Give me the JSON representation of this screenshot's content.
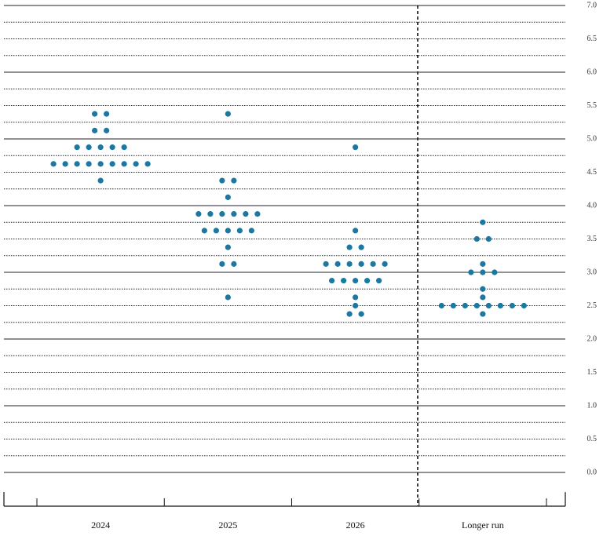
{
  "chart_data": {
    "type": "dot",
    "categories": [
      "2024",
      "2025",
      "2026",
      "Longer run"
    ],
    "values": [
      [
        5.375,
        5.375,
        5.125,
        5.125,
        4.875,
        4.875,
        4.875,
        4.875,
        4.875,
        4.625,
        4.625,
        4.625,
        4.625,
        4.625,
        4.625,
        4.625,
        4.625,
        4.625,
        4.375
      ],
      [
        5.375,
        4.375,
        4.375,
        4.125,
        3.875,
        3.875,
        3.875,
        3.875,
        3.875,
        3.875,
        3.625,
        3.625,
        3.625,
        3.625,
        3.625,
        3.375,
        3.125,
        3.125,
        2.625
      ],
      [
        4.875,
        3.625,
        3.375,
        3.375,
        3.125,
        3.125,
        3.125,
        3.125,
        3.125,
        3.125,
        2.875,
        2.875,
        2.875,
        2.875,
        2.875,
        2.625,
        2.5,
        2.375,
        2.375
      ],
      [
        3.75,
        3.5,
        3.5,
        3.125,
        3.0,
        3.0,
        3.0,
        2.75,
        2.625,
        2.5,
        2.5,
        2.5,
        2.5,
        2.5,
        2.5,
        2.5,
        2.5,
        2.375
      ]
    ],
    "color": "#1a78a3",
    "ylim": [
      0,
      7
    ],
    "yticks": [
      {
        "value": 0,
        "label": "0.0"
      },
      0.5,
      {
        "value": 1,
        "label": "1.0"
      },
      1.5,
      {
        "value": 2,
        "label": "2.0"
      },
      2.5,
      {
        "value": 3,
        "label": "3.0"
      },
      3.5,
      {
        "value": 4,
        "label": "4.0"
      },
      4.5,
      {
        "value": 5,
        "label": "5.0"
      },
      5.5,
      {
        "value": 6,
        "label": "6.0"
      },
      6.5,
      {
        "value": 7,
        "label": "7.0"
      }
    ],
    "grid": true
  }
}
